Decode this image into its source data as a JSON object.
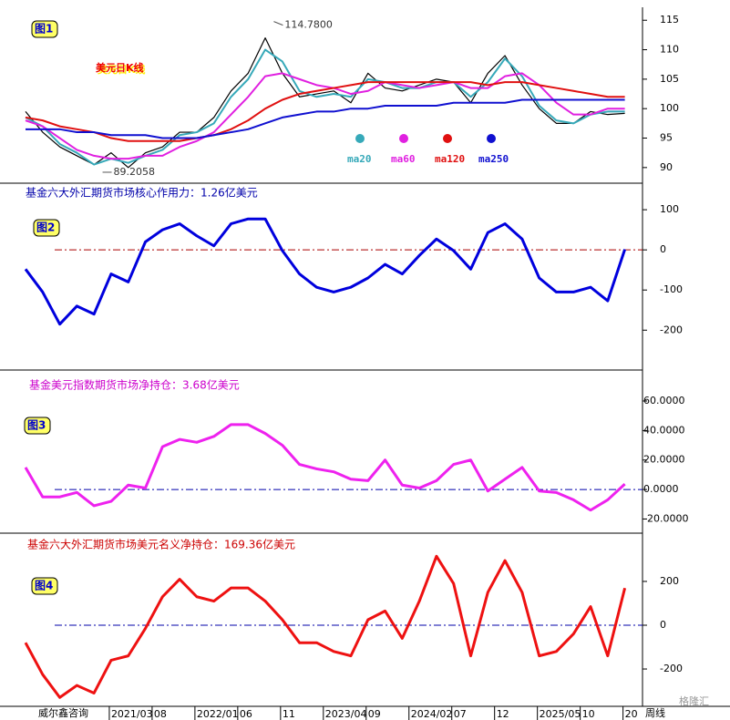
{
  "chart_data": [
    {
      "type": "line",
      "label": "图1",
      "title": "美元日K线",
      "x": [
        0,
        2,
        4,
        6,
        8,
        10,
        12,
        14,
        16,
        18,
        20,
        22,
        24,
        26,
        28,
        30,
        32,
        34,
        36,
        38,
        40,
        42,
        44,
        46,
        48,
        50,
        52,
        54,
        56,
        58,
        60,
        62,
        64,
        66,
        68,
        70
      ],
      "xlim": [
        0,
        71
      ],
      "ylim": [
        87.5,
        117.2
      ],
      "yticks": [
        90,
        95,
        100,
        105,
        110,
        115
      ],
      "price": {
        "color": "#000000",
        "values": [
          99.5,
          96,
          93.5,
          92,
          90.5,
          92.5,
          90,
          92.5,
          93.5,
          96,
          96,
          98.5,
          103,
          106,
          112,
          106,
          102,
          102.5,
          103,
          101,
          106,
          103.5,
          103,
          104,
          105,
          104.5,
          101,
          106,
          109,
          104,
          100,
          97.5,
          97.5,
          99.5,
          99,
          99.2
        ]
      },
      "series": [
        {
          "name": "ma20",
          "color": "#36a9b9",
          "values": [
            98.5,
            97,
            94,
            92.5,
            90.5,
            91.5,
            90.8,
            92,
            93,
            95.5,
            96,
            97.5,
            102,
            105,
            110,
            108,
            103,
            102,
            102.5,
            102,
            105,
            104.5,
            103.5,
            103.5,
            104.5,
            104.5,
            102,
            104.5,
            108.5,
            105.5,
            100.5,
            98,
            97.5,
            99,
            99.5,
            99.5
          ]
        },
        {
          "name": "ma60",
          "color": "#e020e0",
          "values": [
            98,
            97,
            95,
            93,
            92,
            91.5,
            91.5,
            92,
            92,
            93.5,
            94.5,
            96,
            99,
            102,
            105.5,
            106,
            105,
            104,
            103.5,
            102.5,
            103,
            104.5,
            104,
            103.5,
            104,
            104.5,
            103.5,
            103.5,
            105.5,
            106,
            104,
            101,
            99,
            99,
            100,
            100
          ]
        },
        {
          "name": "ma120",
          "color": "#e01010",
          "values": [
            98.5,
            98,
            97,
            96.5,
            96,
            95,
            94.5,
            94.5,
            94.5,
            94.5,
            95,
            95.5,
            96.5,
            98,
            100,
            101.5,
            102.5,
            103,
            103.5,
            104,
            104.5,
            104.5,
            104.5,
            104.5,
            104.5,
            104.5,
            104.5,
            104,
            104.5,
            104.5,
            104,
            103.5,
            103,
            102.5,
            102,
            102
          ]
        },
        {
          "name": "ma250",
          "color": "#1010d0",
          "values": [
            96.5,
            96.5,
            96.5,
            96,
            96,
            95.5,
            95.5,
            95.5,
            95,
            95,
            95,
            95.5,
            96,
            96.5,
            97.5,
            98.5,
            99,
            99.5,
            99.5,
            100,
            100,
            100.5,
            100.5,
            100.5,
            100.5,
            101,
            101,
            101,
            101,
            101.5,
            101.5,
            101.5,
            101.5,
            101.5,
            101.5,
            101.5
          ]
        }
      ],
      "annotations": [
        {
          "x": 29,
          "y": 114.78,
          "text": "114.7800"
        },
        {
          "x": 9,
          "y": 89.2058,
          "text": "89.2058"
        }
      ]
    },
    {
      "type": "line",
      "label": "图2",
      "title": "基金六大外汇期货市场核心作用力：1.26亿美元",
      "title_color": "#0000aa",
      "x": [
        0,
        2,
        4,
        6,
        8,
        10,
        12,
        14,
        16,
        18,
        20,
        22,
        24,
        26,
        28,
        30,
        32,
        34,
        36,
        38,
        40,
        42,
        44,
        46,
        48,
        50,
        52,
        54,
        56,
        58,
        60,
        62,
        64,
        66,
        68,
        70
      ],
      "xlim": [
        0,
        71
      ],
      "ylim": [
        -297,
        157
      ],
      "yticks": [
        -200,
        -100,
        0,
        100
      ],
      "reference": 0,
      "reference_color": "#aa0000",
      "series": [
        {
          "color": "#0000dd",
          "values": [
            -48,
            -105,
            -185,
            -140,
            -160,
            -60,
            -80,
            20,
            50,
            65,
            35,
            10,
            65,
            77,
            77,
            -2,
            -60,
            -93,
            -105,
            -93,
            -70,
            -36,
            -60,
            -14,
            27,
            -2,
            -48,
            43,
            65,
            27,
            -70,
            -105,
            -105,
            -93,
            -127,
            1.26
          ]
        }
      ]
    },
    {
      "type": "line",
      "label": "图3",
      "title": "基金美元指数期货市场净持仓：3.68亿美元",
      "title_color": "#cc00cc",
      "x": [
        0,
        2,
        4,
        6,
        8,
        10,
        12,
        14,
        16,
        18,
        20,
        22,
        24,
        26,
        28,
        30,
        32,
        34,
        36,
        38,
        40,
        42,
        44,
        46,
        48,
        50,
        52,
        54,
        56,
        58,
        60,
        62,
        64,
        66,
        68,
        70
      ],
      "xlim": [
        0,
        71
      ],
      "ylim": [
        -29.6,
        80.4
      ],
      "yticks": [
        {
          "value": -20,
          "label": "-20.0000"
        },
        {
          "value": 0,
          "label": "0.0000"
        },
        {
          "value": 20,
          "label": "20.0000"
        },
        {
          "value": 40,
          "label": "40.0000"
        },
        {
          "value": 60,
          "label": "60.0000"
        }
      ],
      "reference": 0,
      "reference_color": "#0000aa",
      "series": [
        {
          "color": "#ee22ee",
          "values": [
            15,
            -5,
            -5,
            -2,
            -11,
            -8,
            3,
            1,
            29,
            34,
            32,
            36,
            44,
            44,
            38,
            30,
            17,
            14,
            12,
            7,
            6,
            20,
            3,
            1,
            6,
            17,
            20,
            -1,
            7,
            15,
            -1,
            -2,
            -7,
            -14,
            -7,
            3.68
          ]
        }
      ]
    },
    {
      "type": "line",
      "label": "图4",
      "title": "基金六大外汇期货市场美元名义净持仓：169.36亿美元",
      "title_color": "#cc0000",
      "x": [
        0,
        2,
        4,
        6,
        8,
        10,
        12,
        14,
        16,
        18,
        20,
        22,
        24,
        26,
        28,
        30,
        32,
        34,
        36,
        38,
        40,
        42,
        44,
        46,
        48,
        50,
        52,
        54,
        56,
        58,
        60,
        62,
        64,
        66,
        68,
        70
      ],
      "xlim": [
        0,
        71
      ],
      "ylim": [
        -358,
        412
      ],
      "yticks": [
        -200,
        0,
        200
      ],
      "xticks": [
        {
          "value": 10,
          "label": "2021/03"
        },
        {
          "value": 15,
          "label": "08"
        },
        {
          "value": 20,
          "label": "2022/01"
        },
        {
          "value": 25,
          "label": "06"
        },
        {
          "value": 30,
          "label": "11"
        },
        {
          "value": 35,
          "label": "2023/04"
        },
        {
          "value": 40,
          "label": "09"
        },
        {
          "value": 45,
          "label": "2024/02"
        },
        {
          "value": 50,
          "label": "07"
        },
        {
          "value": 55,
          "label": "12"
        },
        {
          "value": 60,
          "label": "2025/05"
        },
        {
          "value": 65,
          "label": "10"
        },
        {
          "value": 70,
          "label": "20"
        }
      ],
      "reference": 0,
      "reference_color": "#0000aa",
      "series": [
        {
          "color": "#ee1111",
          "values": [
            -80,
            -225,
            -330,
            -275,
            -310,
            -160,
            -140,
            -15,
            130,
            210,
            130,
            110,
            170,
            170,
            110,
            25,
            -80,
            -80,
            -120,
            -140,
            25,
            65,
            -60,
            110,
            315,
            190,
            -140,
            150,
            295,
            150,
            -140,
            -120,
            -40,
            85,
            -140,
            169.36
          ]
        }
      ]
    }
  ],
  "footer": {
    "source": "威尔鑫咨询",
    "period": "周线",
    "watermark": "格隆汇"
  }
}
